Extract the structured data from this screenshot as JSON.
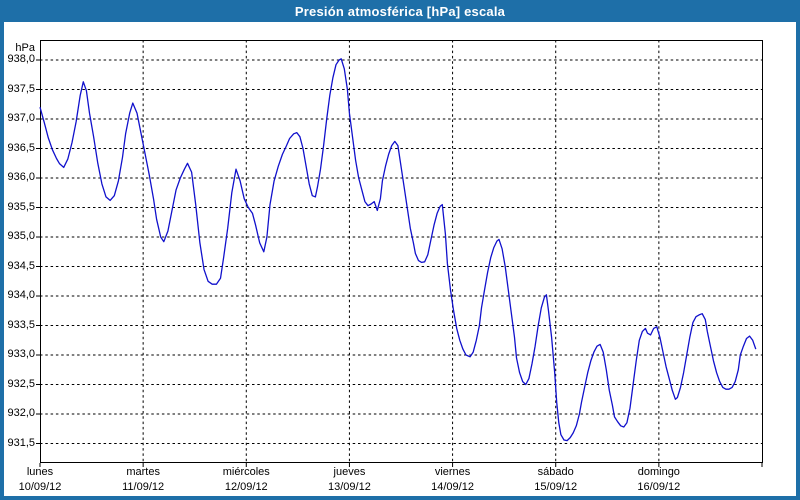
{
  "window": {
    "title": "Presión atmosférica [hPa] escala"
  },
  "colors": {
    "frame": "#1e6fa8",
    "titlebar": "#1e6fa8",
    "title_text": "#ffffff",
    "plot_border": "#000000",
    "gridline": "#000000",
    "line": "#1111cc",
    "label_text": "#000000",
    "background": "#ffffff"
  },
  "chart_data": {
    "type": "line",
    "title": "Presión atmosférica [hPa] escala",
    "unit_label": "hPa",
    "grid": "dashed",
    "legend_position": "none",
    "y_axis": {
      "min": 931.5,
      "max": 938.0,
      "step": 0.5,
      "tick_values": [
        938.0,
        937.5,
        937.0,
        936.5,
        936.0,
        935.5,
        935.0,
        934.5,
        934.0,
        933.5,
        933.0,
        932.5,
        932.0,
        931.5
      ],
      "tick_labels": [
        "938,0",
        "937,5",
        "937,0",
        "936,5",
        "936,0",
        "935,5",
        "935,0",
        "934,5",
        "934,0",
        "933,5",
        "933,0",
        "932,5",
        "932,0",
        "931,5"
      ]
    },
    "x_axis": {
      "range_days": [
        0,
        7
      ],
      "days": [
        {
          "name": "lunes",
          "date": "10/09/12"
        },
        {
          "name": "martes",
          "date": "11/09/12"
        },
        {
          "name": "miércoles",
          "date": "12/09/12"
        },
        {
          "name": "jueves",
          "date": "13/09/12"
        },
        {
          "name": "viernes",
          "date": "14/09/12"
        },
        {
          "name": "sábado",
          "date": "15/09/12"
        },
        {
          "name": "domingo",
          "date": "16/09/12"
        }
      ]
    },
    "series": [
      {
        "name": "Presión atmosférica",
        "unit": "hPa",
        "points": [
          [
            0.0,
            937.2
          ],
          [
            0.04,
            936.95
          ],
          [
            0.08,
            936.68
          ],
          [
            0.12,
            936.48
          ],
          [
            0.16,
            936.33
          ],
          [
            0.19,
            936.24
          ],
          [
            0.23,
            936.18
          ],
          [
            0.27,
            936.32
          ],
          [
            0.31,
            936.6
          ],
          [
            0.35,
            936.95
          ],
          [
            0.39,
            937.4
          ],
          [
            0.42,
            937.63
          ],
          [
            0.45,
            937.48
          ],
          [
            0.48,
            937.1
          ],
          [
            0.52,
            936.7
          ],
          [
            0.56,
            936.25
          ],
          [
            0.6,
            935.9
          ],
          [
            0.64,
            935.68
          ],
          [
            0.68,
            935.62
          ],
          [
            0.72,
            935.7
          ],
          [
            0.76,
            935.95
          ],
          [
            0.8,
            936.35
          ],
          [
            0.83,
            936.75
          ],
          [
            0.87,
            937.1
          ],
          [
            0.9,
            937.27
          ],
          [
            0.94,
            937.1
          ],
          [
            0.98,
            936.75
          ],
          [
            1.02,
            936.4
          ],
          [
            1.06,
            936.05
          ],
          [
            1.1,
            935.65
          ],
          [
            1.13,
            935.3
          ],
          [
            1.17,
            935.0
          ],
          [
            1.2,
            934.92
          ],
          [
            1.24,
            935.1
          ],
          [
            1.28,
            935.45
          ],
          [
            1.32,
            935.8
          ],
          [
            1.36,
            936.0
          ],
          [
            1.4,
            936.15
          ],
          [
            1.43,
            936.25
          ],
          [
            1.47,
            936.1
          ],
          [
            1.51,
            935.55
          ],
          [
            1.55,
            934.9
          ],
          [
            1.59,
            934.45
          ],
          [
            1.63,
            934.25
          ],
          [
            1.67,
            934.2
          ],
          [
            1.71,
            934.2
          ],
          [
            1.75,
            934.3
          ],
          [
            1.78,
            934.65
          ],
          [
            1.82,
            935.15
          ],
          [
            1.86,
            935.75
          ],
          [
            1.9,
            936.15
          ],
          [
            1.94,
            935.95
          ],
          [
            1.98,
            935.65
          ],
          [
            2.02,
            935.5
          ],
          [
            2.06,
            935.4
          ],
          [
            2.09,
            935.2
          ],
          [
            2.13,
            934.9
          ],
          [
            2.17,
            934.75
          ],
          [
            2.2,
            935.0
          ],
          [
            2.23,
            935.55
          ],
          [
            2.27,
            935.95
          ],
          [
            2.31,
            936.2
          ],
          [
            2.35,
            936.4
          ],
          [
            2.39,
            936.55
          ],
          [
            2.42,
            936.67
          ],
          [
            2.46,
            936.75
          ],
          [
            2.49,
            936.77
          ],
          [
            2.52,
            936.7
          ],
          [
            2.55,
            936.5
          ],
          [
            2.58,
            936.2
          ],
          [
            2.61,
            935.9
          ],
          [
            2.64,
            935.7
          ],
          [
            2.67,
            935.68
          ],
          [
            2.69,
            935.85
          ],
          [
            2.72,
            936.15
          ],
          [
            2.75,
            936.55
          ],
          [
            2.78,
            937.0
          ],
          [
            2.81,
            937.4
          ],
          [
            2.84,
            937.7
          ],
          [
            2.87,
            937.92
          ],
          [
            2.9,
            938.0
          ],
          [
            2.92,
            938.02
          ],
          [
            2.95,
            937.85
          ],
          [
            2.98,
            937.5
          ],
          [
            3.0,
            937.1
          ],
          [
            3.03,
            936.7
          ],
          [
            3.06,
            936.3
          ],
          [
            3.09,
            936.0
          ],
          [
            3.12,
            935.8
          ],
          [
            3.15,
            935.6
          ],
          [
            3.18,
            935.53
          ],
          [
            3.21,
            935.56
          ],
          [
            3.24,
            935.6
          ],
          [
            3.27,
            935.45
          ],
          [
            3.3,
            935.65
          ],
          [
            3.32,
            935.95
          ],
          [
            3.35,
            936.2
          ],
          [
            3.38,
            936.4
          ],
          [
            3.41,
            936.55
          ],
          [
            3.44,
            936.62
          ],
          [
            3.47,
            936.55
          ],
          [
            3.5,
            936.2
          ],
          [
            3.53,
            935.85
          ],
          [
            3.56,
            935.5
          ],
          [
            3.59,
            935.15
          ],
          [
            3.62,
            934.9
          ],
          [
            3.64,
            934.72
          ],
          [
            3.67,
            934.6
          ],
          [
            3.7,
            934.57
          ],
          [
            3.73,
            934.58
          ],
          [
            3.76,
            934.7
          ],
          [
            3.79,
            934.95
          ],
          [
            3.82,
            935.2
          ],
          [
            3.85,
            935.4
          ],
          [
            3.88,
            935.52
          ],
          [
            3.9,
            935.55
          ],
          [
            3.93,
            935.05
          ],
          [
            3.95,
            934.55
          ],
          [
            3.98,
            934.1
          ],
          [
            4.01,
            933.75
          ],
          [
            4.04,
            933.45
          ],
          [
            4.07,
            933.25
          ],
          [
            4.1,
            933.1
          ],
          [
            4.13,
            933.0
          ],
          [
            4.17,
            932.97
          ],
          [
            4.2,
            933.05
          ],
          [
            4.23,
            933.25
          ],
          [
            4.26,
            933.5
          ],
          [
            4.28,
            933.8
          ],
          [
            4.31,
            934.1
          ],
          [
            4.34,
            934.4
          ],
          [
            4.37,
            934.65
          ],
          [
            4.4,
            934.82
          ],
          [
            4.43,
            934.93
          ],
          [
            4.45,
            934.96
          ],
          [
            4.48,
            934.8
          ],
          [
            4.51,
            934.5
          ],
          [
            4.54,
            934.1
          ],
          [
            4.57,
            933.7
          ],
          [
            4.6,
            933.3
          ],
          [
            4.62,
            932.95
          ],
          [
            4.65,
            932.7
          ],
          [
            4.68,
            932.55
          ],
          [
            4.71,
            932.5
          ],
          [
            4.74,
            932.6
          ],
          [
            4.77,
            932.85
          ],
          [
            4.8,
            933.15
          ],
          [
            4.83,
            933.5
          ],
          [
            4.86,
            933.8
          ],
          [
            4.89,
            933.98
          ],
          [
            4.91,
            934.02
          ],
          [
            4.93,
            933.75
          ],
          [
            4.96,
            933.3
          ],
          [
            4.99,
            932.7
          ],
          [
            5.01,
            932.2
          ],
          [
            5.03,
            931.85
          ],
          [
            5.05,
            931.65
          ],
          [
            5.08,
            931.56
          ],
          [
            5.11,
            931.55
          ],
          [
            5.14,
            931.6
          ],
          [
            5.17,
            931.68
          ],
          [
            5.2,
            931.8
          ],
          [
            5.23,
            932.0
          ],
          [
            5.25,
            932.2
          ],
          [
            5.28,
            932.45
          ],
          [
            5.31,
            932.7
          ],
          [
            5.34,
            932.9
          ],
          [
            5.37,
            933.05
          ],
          [
            5.4,
            933.15
          ],
          [
            5.43,
            933.18
          ],
          [
            5.46,
            933.05
          ],
          [
            5.49,
            932.75
          ],
          [
            5.52,
            932.4
          ],
          [
            5.55,
            932.15
          ],
          [
            5.57,
            931.95
          ],
          [
            5.6,
            931.87
          ],
          [
            5.63,
            931.8
          ],
          [
            5.66,
            931.78
          ],
          [
            5.69,
            931.85
          ],
          [
            5.72,
            932.1
          ],
          [
            5.75,
            932.5
          ],
          [
            5.78,
            932.9
          ],
          [
            5.81,
            933.25
          ],
          [
            5.84,
            933.4
          ],
          [
            5.87,
            933.45
          ],
          [
            5.89,
            933.37
          ],
          [
            5.92,
            933.34
          ],
          [
            5.95,
            933.45
          ],
          [
            5.98,
            933.48
          ],
          [
            6.01,
            933.3
          ],
          [
            6.04,
            933.05
          ],
          [
            6.07,
            932.8
          ],
          [
            6.1,
            932.6
          ],
          [
            6.13,
            932.4
          ],
          [
            6.16,
            932.25
          ],
          [
            6.18,
            932.28
          ],
          [
            6.21,
            932.45
          ],
          [
            6.24,
            932.7
          ],
          [
            6.27,
            933.0
          ],
          [
            6.3,
            933.3
          ],
          [
            6.33,
            933.55
          ],
          [
            6.36,
            933.65
          ],
          [
            6.39,
            933.68
          ],
          [
            6.42,
            933.7
          ],
          [
            6.45,
            933.6
          ],
          [
            6.47,
            933.4
          ],
          [
            6.5,
            933.15
          ],
          [
            6.53,
            932.9
          ],
          [
            6.56,
            932.7
          ],
          [
            6.59,
            932.55
          ],
          [
            6.62,
            932.45
          ],
          [
            6.65,
            932.42
          ],
          [
            6.68,
            932.42
          ],
          [
            6.71,
            932.45
          ],
          [
            6.74,
            932.55
          ],
          [
            6.77,
            932.75
          ],
          [
            6.79,
            933.0
          ],
          [
            6.82,
            933.15
          ],
          [
            6.85,
            933.28
          ],
          [
            6.88,
            933.32
          ],
          [
            6.91,
            933.25
          ],
          [
            6.94,
            933.1
          ]
        ]
      }
    ]
  }
}
